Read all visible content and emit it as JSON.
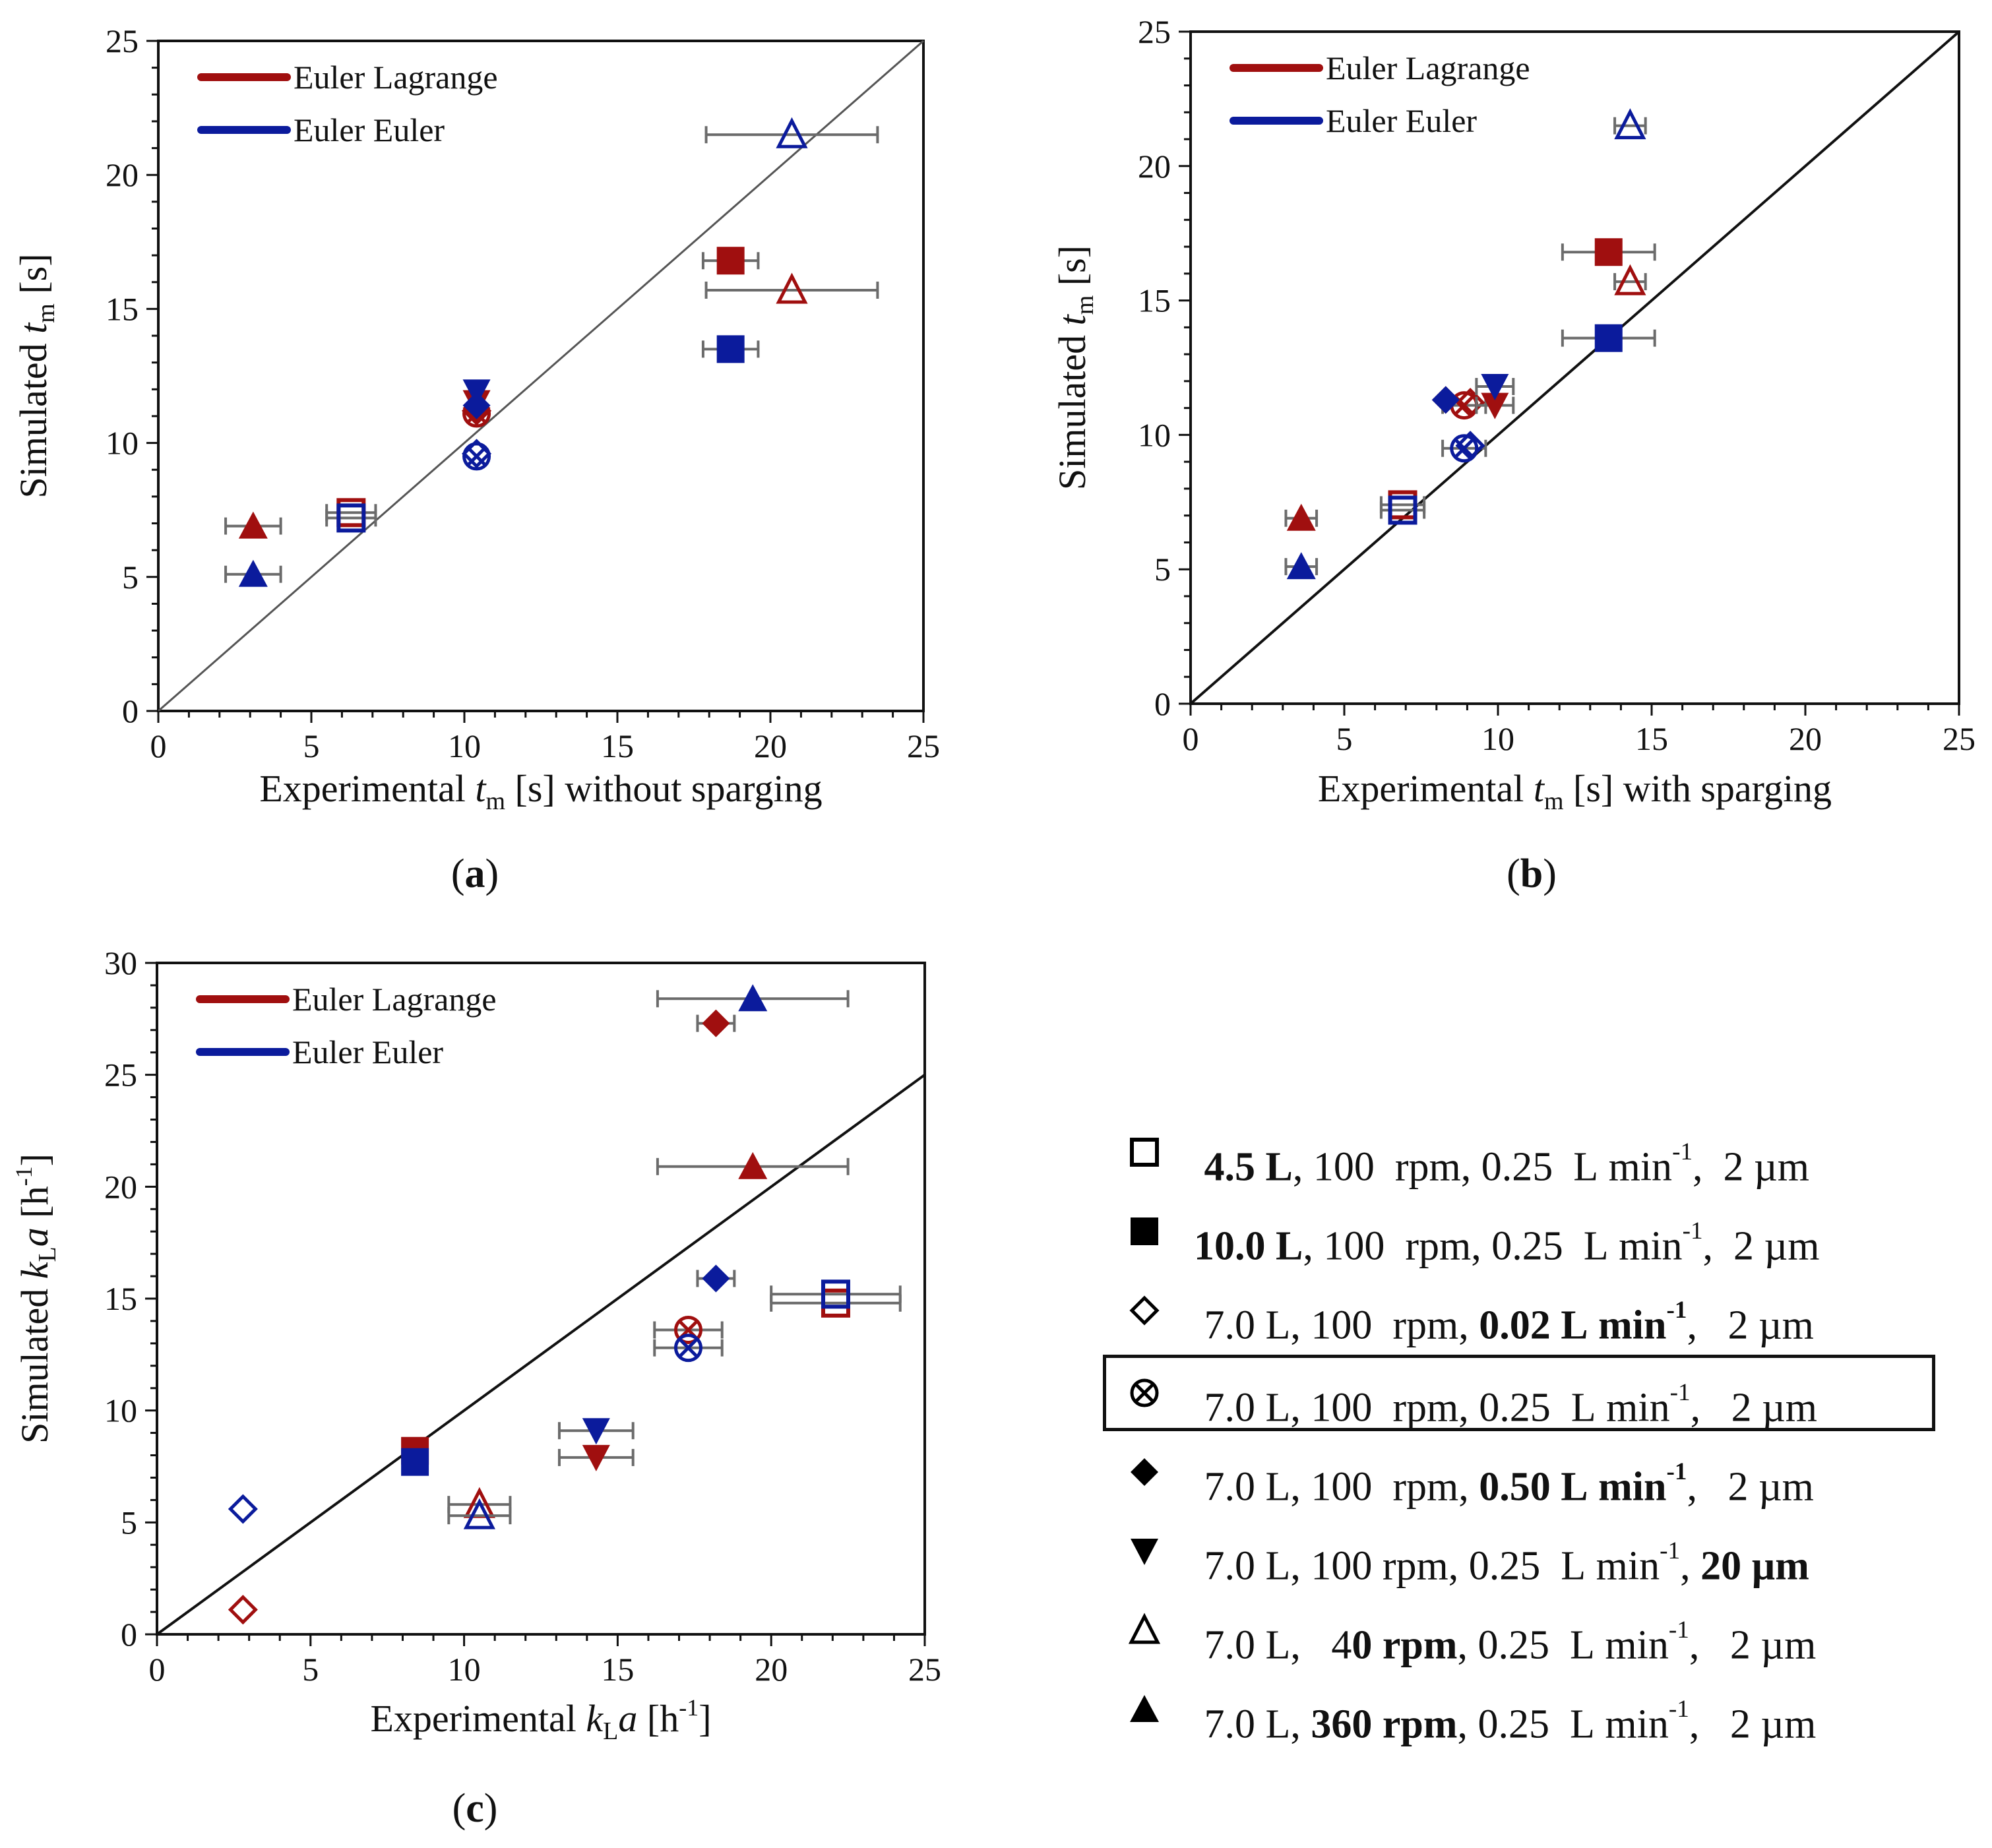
{
  "colors": {
    "el": "#a00f0f",
    "ee": "#0b1b9c",
    "err": "#6b6b6b",
    "axis": "#111111"
  },
  "panels": [
    {
      "id": "a",
      "label": "(a)",
      "xlabel": [
        "Experimental ",
        "t",
        "m",
        "  [s] without sparging"
      ],
      "ylabel": [
        "Simulated ",
        "t",
        "m",
        "  [s]"
      ],
      "xlim": [
        0,
        25
      ],
      "ylim": [
        0,
        25
      ],
      "xticks": [
        0,
        5,
        10,
        15,
        20,
        25
      ],
      "yticks": [
        0,
        5,
        10,
        15,
        20,
        25
      ],
      "legend": [
        "Euler Lagrange",
        "Euler Euler"
      ]
    },
    {
      "id": "b",
      "label": "(b)",
      "xlabel": [
        "Experimental ",
        "t",
        "m",
        "  [s] with sparging"
      ],
      "ylabel": [
        "Simulated ",
        "t",
        "m",
        "  [s]"
      ],
      "xlim": [
        0,
        25
      ],
      "ylim": [
        0,
        25
      ],
      "xticks": [
        0,
        5,
        10,
        15,
        20,
        25
      ],
      "yticks": [
        0,
        5,
        10,
        15,
        20,
        25
      ],
      "legend": [
        "Euler Lagrange",
        "Euler Euler"
      ]
    },
    {
      "id": "c",
      "label": "(c)",
      "xlabel": [
        "Experimental ",
        "k",
        "L",
        "a",
        "  [h",
        "-1",
        "]"
      ],
      "ylabel": [
        "Simulated ",
        "k",
        "L",
        "a",
        "  [h",
        "-1",
        "]"
      ],
      "xlim": [
        0,
        25
      ],
      "ylim": [
        0,
        30
      ],
      "xticks": [
        0,
        5,
        10,
        15,
        20,
        25
      ],
      "yticks": [
        0,
        5,
        10,
        15,
        20,
        25,
        30
      ],
      "legend": [
        "Euler Lagrange",
        "Euler Euler"
      ]
    }
  ],
  "chart_data": [
    {
      "type": "scatter",
      "panel": "a",
      "xlabel": "Experimental tm [s] without sparging",
      "ylabel": "Simulated tm [s]",
      "xlim": [
        0,
        25
      ],
      "ylim": [
        0,
        25
      ],
      "reference_line": "y = x",
      "series": [
        {
          "name": "Euler Lagrange",
          "points": [
            {
              "marker": "open-square",
              "x": 6.3,
              "y": 7.4,
              "xerr": 0.8
            },
            {
              "marker": "filled-square",
              "x": 18.7,
              "y": 16.8,
              "xerr": 0.9
            },
            {
              "marker": "open-diamond",
              "x": 10.4,
              "y": 11.2
            },
            {
              "marker": "circle-x",
              "x": 10.4,
              "y": 11.1
            },
            {
              "marker": "filled-diamond",
              "x": 10.4,
              "y": 11.3
            },
            {
              "marker": "filled-triangle-down",
              "x": 10.4,
              "y": 11.5
            },
            {
              "marker": "open-triangle-up",
              "x": 20.7,
              "y": 15.7,
              "xerr": 2.8
            },
            {
              "marker": "filled-triangle-up",
              "x": 3.1,
              "y": 6.9,
              "xerr": 0.9
            }
          ]
        },
        {
          "name": "Euler Euler",
          "points": [
            {
              "marker": "open-square",
              "x": 6.3,
              "y": 7.2,
              "xerr": 0.8
            },
            {
              "marker": "filled-square",
              "x": 18.7,
              "y": 13.5,
              "xerr": 0.9
            },
            {
              "marker": "open-diamond",
              "x": 10.4,
              "y": 9.6
            },
            {
              "marker": "circle-x",
              "x": 10.4,
              "y": 9.5
            },
            {
              "marker": "filled-diamond",
              "x": 10.4,
              "y": 11.4
            },
            {
              "marker": "filled-triangle-down",
              "x": 10.4,
              "y": 11.9
            },
            {
              "marker": "open-triangle-up",
              "x": 20.7,
              "y": 21.5,
              "xerr": 2.8
            },
            {
              "marker": "filled-triangle-up",
              "x": 3.1,
              "y": 5.1,
              "xerr": 0.9
            }
          ]
        }
      ]
    },
    {
      "type": "scatter",
      "panel": "b",
      "xlabel": "Experimental tm [s] with sparging",
      "ylabel": "Simulated tm [s]",
      "xlim": [
        0,
        25
      ],
      "ylim": [
        0,
        25
      ],
      "reference_line": "y = x",
      "series": [
        {
          "name": "Euler Lagrange",
          "points": [
            {
              "marker": "open-square",
              "x": 6.9,
              "y": 7.4,
              "xerr": 0.7
            },
            {
              "marker": "filled-square",
              "x": 13.6,
              "y": 16.8,
              "xerr": 1.5
            },
            {
              "marker": "circle-x",
              "x": 8.9,
              "y": 11.1,
              "xerr": 0.7
            },
            {
              "marker": "open-diamond",
              "x": 9.1,
              "y": 11.2
            },
            {
              "marker": "filled-diamond",
              "x": 8.3,
              "y": 11.3
            },
            {
              "marker": "filled-triangle-down",
              "x": 9.9,
              "y": 11.1,
              "xerr": 0.6
            },
            {
              "marker": "open-triangle-up",
              "x": 14.3,
              "y": 15.7,
              "xerr": 0.5
            },
            {
              "marker": "filled-triangle-up",
              "x": 3.6,
              "y": 6.9,
              "xerr": 0.5
            }
          ]
        },
        {
          "name": "Euler Euler",
          "points": [
            {
              "marker": "open-square",
              "x": 6.9,
              "y": 7.2,
              "xerr": 0.7
            },
            {
              "marker": "filled-square",
              "x": 13.6,
              "y": 13.6,
              "xerr": 1.5
            },
            {
              "marker": "circle-x",
              "x": 8.9,
              "y": 9.5,
              "xerr": 0.7
            },
            {
              "marker": "open-diamond",
              "x": 9.1,
              "y": 9.6
            },
            {
              "marker": "filled-diamond",
              "x": 8.3,
              "y": 11.3
            },
            {
              "marker": "filled-triangle-down",
              "x": 9.9,
              "y": 11.8,
              "xerr": 0.6
            },
            {
              "marker": "open-triangle-up",
              "x": 14.3,
              "y": 21.5,
              "xerr": 0.5
            },
            {
              "marker": "filled-triangle-up",
              "x": 3.6,
              "y": 5.1,
              "xerr": 0.5
            }
          ]
        }
      ]
    },
    {
      "type": "scatter",
      "panel": "c",
      "xlabel": "Experimental kLa [h-1]",
      "ylabel": "Simulated kLa [h-1]",
      "xlim": [
        0,
        25
      ],
      "ylim": [
        0,
        30
      ],
      "reference_line": "y = x",
      "series": [
        {
          "name": "Euler Lagrange",
          "points": [
            {
              "marker": "open-square",
              "x": 22.1,
              "y": 14.8,
              "xerr": 2.1
            },
            {
              "marker": "filled-square",
              "x": 8.4,
              "y": 8.2
            },
            {
              "marker": "open-diamond",
              "x": 2.8,
              "y": 1.1
            },
            {
              "marker": "circle-x",
              "x": 17.3,
              "y": 13.6,
              "xerr": 1.1
            },
            {
              "marker": "filled-diamond",
              "x": 18.2,
              "y": 27.3,
              "xerr": 0.6
            },
            {
              "marker": "filled-triangle-down",
              "x": 14.3,
              "y": 7.9,
              "xerr": 1.2
            },
            {
              "marker": "open-triangle-up",
              "x": 10.5,
              "y": 5.8,
              "xerr": 1.0
            },
            {
              "marker": "filled-triangle-up",
              "x": 19.4,
              "y": 20.9,
              "xerr": 3.1
            }
          ]
        },
        {
          "name": "Euler Euler",
          "points": [
            {
              "marker": "open-square",
              "x": 22.1,
              "y": 15.2,
              "xerr": 2.1
            },
            {
              "marker": "filled-square",
              "x": 8.4,
              "y": 7.7
            },
            {
              "marker": "open-diamond",
              "x": 2.8,
              "y": 5.6
            },
            {
              "marker": "circle-x",
              "x": 17.3,
              "y": 12.8,
              "xerr": 1.1
            },
            {
              "marker": "filled-diamond",
              "x": 18.2,
              "y": 15.9,
              "xerr": 0.6
            },
            {
              "marker": "filled-triangle-down",
              "x": 14.3,
              "y": 9.1,
              "xerr": 1.2
            },
            {
              "marker": "open-triangle-up",
              "x": 10.5,
              "y": 5.3,
              "xerr": 1.0
            },
            {
              "marker": "filled-triangle-up",
              "x": 19.4,
              "y": 28.4,
              "xerr": 3.1
            }
          ]
        }
      ]
    }
  ],
  "marker_legend": [
    {
      "marker": "open-square",
      "icon": "open-square-icon",
      "parts": [
        [
          "",
          " "
        ],
        [
          "b",
          "4.5 L"
        ],
        [
          "",
          ", 100  rpm, 0.25  L min"
        ],
        [
          "sup",
          "-1"
        ],
        [
          "",
          ",  2 µm"
        ]
      ]
    },
    {
      "marker": "filled-square",
      "icon": "filled-square-icon",
      "parts": [
        [
          "b",
          "10.0 L"
        ],
        [
          "",
          ", 100  rpm, 0.25  L min"
        ],
        [
          "sup",
          "-1"
        ],
        [
          "",
          ",  2 µm"
        ]
      ]
    },
    {
      "marker": "open-diamond",
      "icon": "open-diamond-icon",
      "parts": [
        [
          "",
          " 7.0 L, 100  rpm, "
        ],
        [
          "b",
          "0.02 L min"
        ],
        [
          "bsup",
          "-1"
        ],
        [
          "",
          ",   2 µm"
        ]
      ]
    },
    {
      "marker": "circle-x",
      "icon": "circle-x-icon",
      "boxed": true,
      "parts": [
        [
          "",
          " 7.0 L, 100  rpm, 0.25  L min"
        ],
        [
          "sup",
          "-1"
        ],
        [
          "",
          ",   2 µm"
        ]
      ]
    },
    {
      "marker": "filled-diamond",
      "icon": "filled-diamond-icon",
      "parts": [
        [
          "",
          " 7.0 L, 100  rpm, "
        ],
        [
          "b",
          "0.50 L min"
        ],
        [
          "bsup",
          "-1"
        ],
        [
          "",
          ",   2 µm"
        ]
      ]
    },
    {
      "marker": "filled-triangle-down",
      "icon": "filled-triangle-down-icon",
      "parts": [
        [
          "",
          " 7.0 L, 100 rpm, 0.25  L min"
        ],
        [
          "sup",
          "-1"
        ],
        [
          "",
          ", "
        ],
        [
          "b",
          "20 µm"
        ]
      ]
    },
    {
      "marker": "open-triangle-up",
      "icon": "open-triangle-up-icon",
      "parts": [
        [
          "",
          " 7.0 L,   4"
        ],
        [
          "b",
          "0 rpm"
        ],
        [
          "",
          ", 0.25  L min"
        ],
        [
          "sup",
          "-1"
        ],
        [
          "",
          ",   2 µm"
        ]
      ]
    },
    {
      "marker": "filled-triangle-up",
      "icon": "filled-triangle-up-icon",
      "parts": [
        [
          "",
          " 7.0 L, "
        ],
        [
          "b",
          "360 rpm"
        ],
        [
          "",
          ", 0.25  L min"
        ],
        [
          "sup",
          "-1"
        ],
        [
          "",
          ",   2 µm"
        ]
      ]
    }
  ]
}
